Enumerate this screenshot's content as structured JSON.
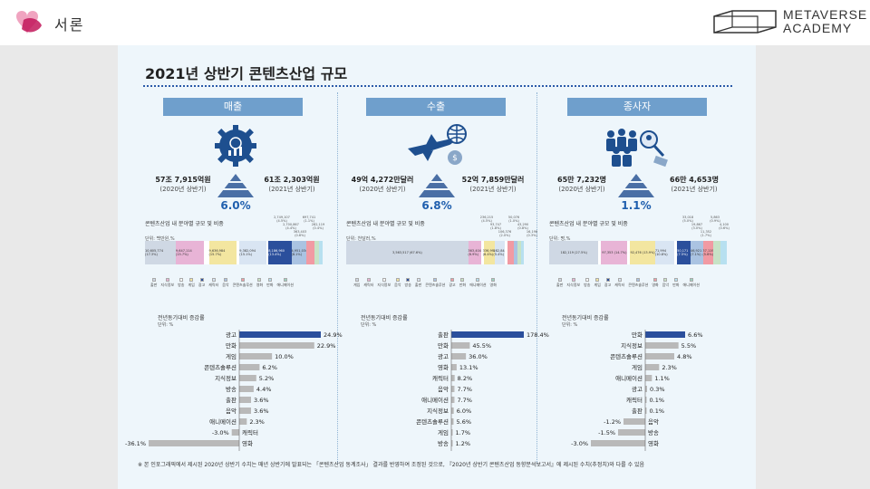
{
  "brand": {
    "left_name": "서론",
    "right_line1": "METAVERSE",
    "right_line2": "ACADEMY"
  },
  "poster": {
    "title": "2021년 상반기 콘텐츠산업 규모",
    "footnote": "※ 본 인포그래픽에서 제시된 2020년 상반기 수치는 매년 상반기에 발표되는 「콘텐츠산업 동계조사」 결과를 반영하여 조정된 것으로, 『2020년 상반기 콘텐츠산업 동향분석보고서』에 제시된 수치(추정치)와 다를 수 있음"
  },
  "panels": [
    {
      "id": "sales",
      "header": "매출",
      "icon": "gear-money-icon",
      "left_value": "57조 7,915억원",
      "left_note": "(2020년 상반기)",
      "right_value": "61조 2,303억원",
      "right_note": "(2021년 상반기)",
      "growth": "6.0%",
      "stack_title": "콘텐츠산업 내 분야별 규모 및 비중",
      "stack_unit": "단위: 백만원,%",
      "stack": [
        {
          "label": "10,605,774 (17.3%)",
          "w": 17.3,
          "color": "#cfd8e4"
        },
        {
          "label": "9,647,114 (15.7%)",
          "w": 15.7,
          "color": "#e8b4d6"
        },
        {
          "label": "",
          "w": 3.0,
          "color": "#ffffff"
        },
        {
          "label": "9,636,984 (15.7%)",
          "w": 15.7,
          "color": "#f3e6a0"
        },
        {
          "label": "",
          "w": 1.5,
          "color": "#ffffff"
        },
        {
          "label": "9,382,094 (15.1%)",
          "w": 15.1,
          "color": "#d9e5f3"
        },
        {
          "label": "",
          "w": 1.2,
          "color": "#ffffff"
        },
        {
          "label": "8,186,960 (13.4%)",
          "w": 13.4,
          "color": "#2b4f9c"
        },
        {
          "label": "4,951,034 (8.1%)",
          "w": 8.1,
          "color": "#aac3e2"
        },
        {
          "label": "",
          "w": 4.5,
          "color": "#f19aa3"
        },
        {
          "label": "",
          "w": 2.5,
          "color": "#c7e3c6"
        },
        {
          "label": "",
          "w": 2.0,
          "color": "#b7e0f0"
        }
      ],
      "top_labels": [
        "2,749,107 (4.5%)",
        "2,700,867 (4.4%)",
        "363,403 (0.6%)",
        "697,741 (1.1%)",
        "282,119 (0.4%)"
      ],
      "legend": [
        "출판",
        "지식정보",
        "방송",
        "게임",
        "광고",
        "캐릭터",
        "음악",
        "콘텐츠솔루션",
        "영화",
        "만화",
        "애니메이션"
      ],
      "growth_title": "전년동기대비 증감률",
      "growth_unit": "단위: %",
      "bars": [
        {
          "name": "광고",
          "value": 24.9,
          "label": "24.9%"
        },
        {
          "name": "만화",
          "value": 22.9,
          "label": "22.9%"
        },
        {
          "name": "게임",
          "value": 10.0,
          "label": "10.0%"
        },
        {
          "name": "콘텐츠솔루션",
          "value": 6.2,
          "label": "6.2%"
        },
        {
          "name": "지식정보",
          "value": 5.2,
          "label": "5.2%"
        },
        {
          "name": "방송",
          "value": 4.4,
          "label": "4.4%"
        },
        {
          "name": "출판",
          "value": 3.6,
          "label": "3.6%"
        },
        {
          "name": "음악",
          "value": 3.6,
          "label": "3.6%"
        },
        {
          "name": "애니메이션",
          "value": 2.3,
          "label": "2.3%"
        },
        {
          "name": "캐릭터",
          "value": -3.0,
          "label": "-3.0%"
        },
        {
          "name": "영화",
          "value": -36.1,
          "label": "-36.1%"
        }
      ]
    },
    {
      "id": "exports",
      "header": "수출",
      "icon": "plane-globe-icon",
      "left_value": "49억 4,272만달러",
      "left_note": "(2020년 상반기)",
      "right_value": "52억 7,859만달러",
      "right_note": "(2021년 상반기)",
      "growth": "6.8%",
      "stack_title": "콘텐츠산업 내 분야별 규모 및 비중",
      "stack_unit": "단위: 천달러,%",
      "stack": [
        {
          "label": "3,563,517 (67.6%)",
          "w": 67.6,
          "color": "#cfd8e4"
        },
        {
          "label": "363,404 (6.9%)",
          "w": 6.9,
          "color": "#e8b4d6"
        },
        {
          "label": "",
          "w": 1.5,
          "color": "#ffffff"
        },
        {
          "label": "336,994 (6.4%)",
          "w": 6.4,
          "color": "#f3e6a0"
        },
        {
          "label": "282,848 (5.4%)",
          "w": 5.4,
          "color": "#d9e5f3"
        },
        {
          "label": "",
          "w": 1.5,
          "color": "#ffffff"
        },
        {
          "label": "",
          "w": 3.5,
          "color": "#f19aa3"
        },
        {
          "label": "",
          "w": 2.0,
          "color": "#aac3e2"
        },
        {
          "label": "",
          "w": 2.0,
          "color": "#c7e3c6"
        },
        {
          "label": "",
          "w": 1.5,
          "color": "#b7e0f0"
        }
      ],
      "top_labels": [
        "236,215 (4.5%)",
        "93,747 (1.8%)",
        "106,376 (2.0%)",
        "50,076 (1.0%)",
        "43,290 (0.8%)",
        "16,198 (0.3%)"
      ],
      "legend": [
        "게임",
        "캐릭터",
        "지식정보",
        "음악",
        "방송",
        "출판",
        "콘텐츠솔루션",
        "광고",
        "만화",
        "애니메이션",
        "영화"
      ],
      "growth_title": "전년동기대비 증감률",
      "growth_unit": "단위: %",
      "bars": [
        {
          "name": "출판",
          "value": 178.4,
          "label": "178.4%"
        },
        {
          "name": "만화",
          "value": 45.5,
          "label": "45.5%"
        },
        {
          "name": "광고",
          "value": 36.0,
          "label": "36.0%"
        },
        {
          "name": "영화",
          "value": 13.1,
          "label": "13.1%"
        },
        {
          "name": "캐릭터",
          "value": 8.2,
          "label": "8.2%"
        },
        {
          "name": "음악",
          "value": 7.7,
          "label": "7.7%"
        },
        {
          "name": "애니메이션",
          "value": 7.7,
          "label": "7.7%"
        },
        {
          "name": "지식정보",
          "value": 6.0,
          "label": "6.0%"
        },
        {
          "name": "콘텐츠솔루션",
          "value": 5.6,
          "label": "5.6%"
        },
        {
          "name": "게임",
          "value": 1.7,
          "label": "1.7%"
        },
        {
          "name": "방송",
          "value": 1.2,
          "label": "1.2%"
        }
      ]
    },
    {
      "id": "employees",
      "header": "종사자",
      "icon": "people-search-icon",
      "left_value": "65만 7,232명",
      "left_note": "(2020년 상반기)",
      "right_value": "66만 4,653명",
      "right_note": "(2021년 상반기)",
      "growth": "1.1%",
      "stack_title": "콘텐츠산업 내 분야별 규모 및 비중",
      "stack_unit": "단위: 명,%",
      "stack": [
        {
          "label": "182,119 (27.5%)",
          "w": 27.5,
          "color": "#cfd8e4"
        },
        {
          "label": "",
          "w": 1.5,
          "color": "#ffffff"
        },
        {
          "label": "97,353 (14.7%)",
          "w": 14.7,
          "color": "#e8b4d6"
        },
        {
          "label": "",
          "w": 1.5,
          "color": "#ffffff"
        },
        {
          "label": "92,476 (13.9%)",
          "w": 13.9,
          "color": "#f3e6a0"
        },
        {
          "label": "71,994 (10.8%)",
          "w": 10.8,
          "color": "#d9e5f3"
        },
        {
          "label": "",
          "w": 1.5,
          "color": "#ffffff"
        },
        {
          "label": "50,171 (7.5%)",
          "w": 7.5,
          "color": "#2b4f9c"
        },
        {
          "label": "46,921 (7.1%)",
          "w": 7.1,
          "color": "#aac3e2"
        },
        {
          "label": "37,119 (5.6%)",
          "w": 5.6,
          "color": "#f19aa3"
        },
        {
          "label": "",
          "w": 4.0,
          "color": "#c7e3c6"
        },
        {
          "label": "",
          "w": 3.5,
          "color": "#b7e0f0"
        }
      ],
      "top_labels": [
        "33,018 (5.0%)",
        "19,867 (3.0%)",
        "11,352 (1.7%)",
        "5,863 (0.9%)",
        "4,100 (0.6%)"
      ],
      "legend": [
        "출판",
        "지식정보",
        "방송",
        "게임",
        "광고",
        "캐릭터",
        "콘텐츠솔루션",
        "영화",
        "음악",
        "만화",
        "애니메이션"
      ],
      "growth_title": "전년동기대비 증감률",
      "growth_unit": "단위: %",
      "bars": [
        {
          "name": "만화",
          "value": 6.6,
          "label": "6.6%"
        },
        {
          "name": "지식정보",
          "value": 5.5,
          "label": "5.5%"
        },
        {
          "name": "콘텐츠솔루션",
          "value": 4.8,
          "label": "4.8%"
        },
        {
          "name": "게임",
          "value": 2.3,
          "label": "2.3%"
        },
        {
          "name": "애니메이션",
          "value": 1.1,
          "label": "1.1%"
        },
        {
          "name": "광고",
          "value": 0.3,
          "label": "0.3%"
        },
        {
          "name": "캐릭터",
          "value": 0.1,
          "label": "0.1%"
        },
        {
          "name": "출판",
          "value": 0.1,
          "label": "0.1%"
        },
        {
          "name": "음악",
          "value": -1.2,
          "label": "-1.2%"
        },
        {
          "name": "방송",
          "value": -1.5,
          "label": "-1.5%"
        },
        {
          "name": "영화",
          "value": -3.0,
          "label": "-3.0%"
        }
      ]
    }
  ],
  "legend_colors": [
    "#cfd8e4",
    "#e8b4d6",
    "#ffffff",
    "#f3e6a0",
    "#2b4f9c",
    "#d9e5f3",
    "#aac3e2",
    "#f19aa3",
    "#c7e3c6",
    "#b7e0f0",
    "#9bd3c0"
  ],
  "colors": {
    "accent": "#1f5fae",
    "header": "#6f9fcc",
    "bar_top": "#2b4f9c",
    "bar_other": "#b9b9b9"
  }
}
